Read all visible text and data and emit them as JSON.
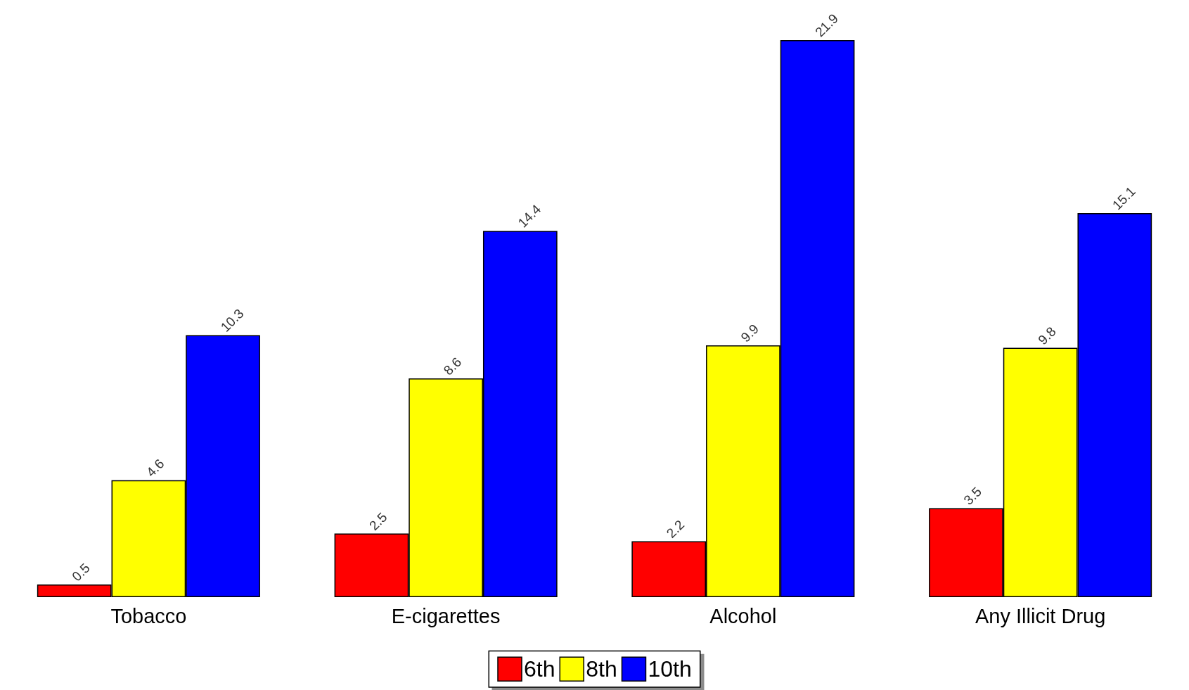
{
  "chart_data": {
    "type": "bar",
    "categories": [
      "Tobacco",
      "E-cigarettes",
      "Alcohol",
      "Any Illicit Drug"
    ],
    "series": [
      {
        "name": "6th",
        "color": "#ff0000",
        "values": [
          0.5,
          2.5,
          2.2,
          3.5
        ]
      },
      {
        "name": "8th",
        "color": "#ffff00",
        "values": [
          4.6,
          8.6,
          9.9,
          9.8
        ]
      },
      {
        "name": "10th",
        "color": "#0000ff",
        "values": [
          10.3,
          14.4,
          21.9,
          15.1
        ]
      }
    ],
    "data_labels": true,
    "legend": "bottom"
  }
}
